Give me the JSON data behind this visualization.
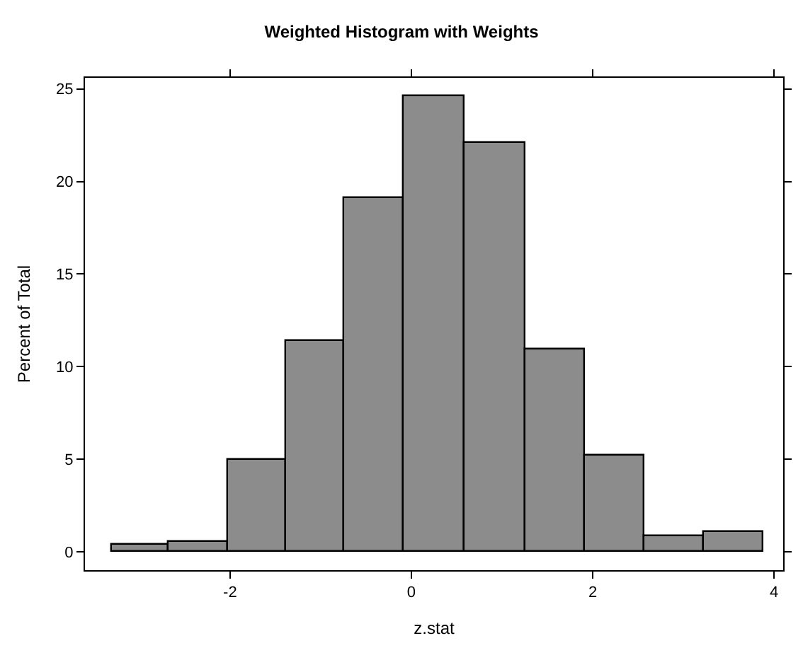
{
  "chart_data": {
    "type": "histogram",
    "title": "Weighted Histogram with Weights",
    "xlabel": "z.stat",
    "ylabel": "Percent of Total",
    "bins": [
      -3.31,
      -2.68,
      -2.02,
      -1.38,
      -0.74,
      -0.09,
      0.58,
      1.25,
      1.91,
      2.57,
      3.23,
      3.88
    ],
    "values": [
      0.4,
      0.5,
      5.0,
      11.4,
      19.1,
      24.6,
      22.1,
      10.9,
      5.2,
      0.8,
      1.1
    ],
    "color": "#8c8c8c",
    "xlim": [
      -3.6,
      4.1
    ],
    "xticks": [
      -2,
      0,
      2,
      4
    ],
    "ylim": [
      -1,
      25.6
    ],
    "yticks": [
      0,
      5,
      10,
      15,
      20,
      25
    ]
  }
}
